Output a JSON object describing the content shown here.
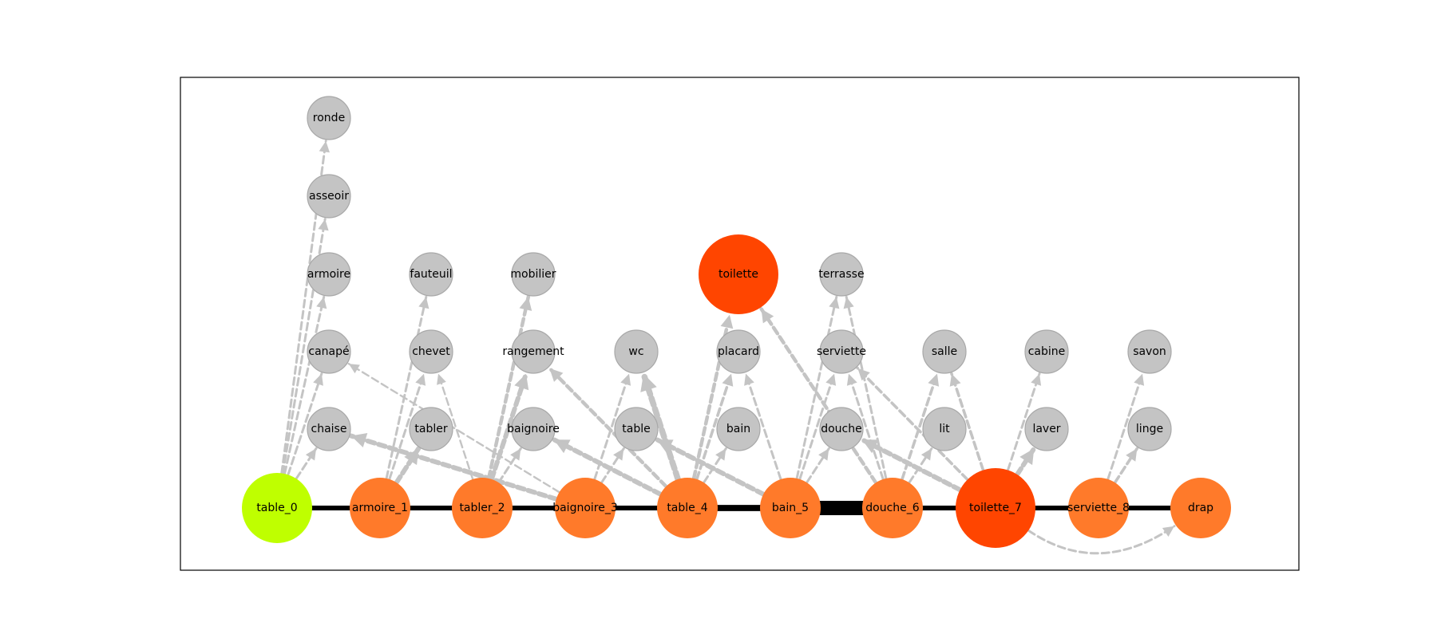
{
  "colors": {
    "start": "#bfff00",
    "chain": "#ff7a2a",
    "hub": "#ff4500",
    "assoc": "#c4c4c4",
    "assoc_stroke": "#a8a8a8",
    "edge": "#000000",
    "assoc_edge": "#c4c4c4"
  },
  "nodes": [
    {
      "id": "table_0",
      "label": "table_0",
      "kind": "start"
    },
    {
      "id": "armoire_1",
      "label": "armoire_1",
      "kind": "chain"
    },
    {
      "id": "tabler_2",
      "label": "tabler_2",
      "kind": "chain"
    },
    {
      "id": "baignoire_3",
      "label": "baignoire_3",
      "kind": "chain"
    },
    {
      "id": "table_4",
      "label": "table_4",
      "kind": "chain"
    },
    {
      "id": "bain_5",
      "label": "bain_5",
      "kind": "chain"
    },
    {
      "id": "douche_6",
      "label": "douche_6",
      "kind": "chain"
    },
    {
      "id": "toilette_7",
      "label": "toilette_7",
      "kind": "hub"
    },
    {
      "id": "serviette_8",
      "label": "serviette_8",
      "kind": "chain"
    },
    {
      "id": "drap",
      "label": "drap",
      "kind": "chain"
    },
    {
      "id": "toilette",
      "label": "toilette",
      "kind": "hub"
    },
    {
      "id": "chaise",
      "label": "chaise",
      "kind": "assoc"
    },
    {
      "id": "canape",
      "label": "canapé",
      "kind": "assoc"
    },
    {
      "id": "armoire",
      "label": "armoire",
      "kind": "assoc"
    },
    {
      "id": "asseoir",
      "label": "asseoir",
      "kind": "assoc"
    },
    {
      "id": "ronde",
      "label": "ronde",
      "kind": "assoc"
    },
    {
      "id": "tabler",
      "label": "tabler",
      "kind": "assoc"
    },
    {
      "id": "chevet",
      "label": "chevet",
      "kind": "assoc"
    },
    {
      "id": "fauteuil",
      "label": "fauteuil",
      "kind": "assoc"
    },
    {
      "id": "baignoire",
      "label": "baignoire",
      "kind": "assoc"
    },
    {
      "id": "rangement",
      "label": "rangement",
      "kind": "assoc"
    },
    {
      "id": "mobilier",
      "label": "mobilier",
      "kind": "assoc"
    },
    {
      "id": "table",
      "label": "table",
      "kind": "assoc"
    },
    {
      "id": "wc",
      "label": "wc",
      "kind": "assoc"
    },
    {
      "id": "bain",
      "label": "bain",
      "kind": "assoc"
    },
    {
      "id": "placard",
      "label": "placard",
      "kind": "assoc"
    },
    {
      "id": "douche",
      "label": "douche",
      "kind": "assoc"
    },
    {
      "id": "serviette",
      "label": "serviette",
      "kind": "assoc"
    },
    {
      "id": "terrasse",
      "label": "terrasse",
      "kind": "assoc"
    },
    {
      "id": "lit",
      "label": "lit",
      "kind": "assoc"
    },
    {
      "id": "salle",
      "label": "salle",
      "kind": "assoc"
    },
    {
      "id": "laver",
      "label": "laver",
      "kind": "assoc"
    },
    {
      "id": "cabine",
      "label": "cabine",
      "kind": "assoc"
    },
    {
      "id": "linge",
      "label": "linge",
      "kind": "assoc"
    },
    {
      "id": "savon",
      "label": "savon",
      "kind": "assoc"
    }
  ],
  "chain_edges": [
    {
      "from": "table_0",
      "to": "armoire_1",
      "weight": 1
    },
    {
      "from": "armoire_1",
      "to": "tabler_2",
      "weight": 1
    },
    {
      "from": "tabler_2",
      "to": "baignoire_3",
      "weight": 1
    },
    {
      "from": "baignoire_3",
      "to": "table_4",
      "weight": 1
    },
    {
      "from": "table_4",
      "to": "bain_5",
      "weight": 1.3
    },
    {
      "from": "bain_5",
      "to": "douche_6",
      "weight": 3
    },
    {
      "from": "douche_6",
      "to": "toilette_7",
      "weight": 1
    },
    {
      "from": "toilette_7",
      "to": "serviette_8",
      "weight": 1
    },
    {
      "from": "serviette_8",
      "to": "drap",
      "weight": 1
    }
  ],
  "assoc_edges": [
    {
      "from": "table_0",
      "to": "chaise",
      "weight": 1
    },
    {
      "from": "table_0",
      "to": "canape",
      "weight": 1
    },
    {
      "from": "table_0",
      "to": "armoire",
      "weight": 1
    },
    {
      "from": "table_0",
      "to": "asseoir",
      "weight": 1
    },
    {
      "from": "table_0",
      "to": "ronde",
      "weight": 1
    },
    {
      "from": "armoire_1",
      "to": "tabler",
      "weight": 2
    },
    {
      "from": "armoire_1",
      "to": "chevet",
      "weight": 1
    },
    {
      "from": "armoire_1",
      "to": "fauteuil",
      "weight": 1
    },
    {
      "from": "tabler_2",
      "to": "baignoire",
      "weight": 1
    },
    {
      "from": "tabler_2",
      "to": "rangement",
      "weight": 2
    },
    {
      "from": "tabler_2",
      "to": "mobilier",
      "weight": 1.5
    },
    {
      "from": "tabler_2",
      "to": "chevet",
      "weight": 0.8
    },
    {
      "from": "baignoire_3",
      "to": "chaise",
      "weight": 2
    },
    {
      "from": "baignoire_3",
      "to": "canape",
      "weight": 0.8
    },
    {
      "from": "baignoire_3",
      "to": "table",
      "weight": 1
    },
    {
      "from": "baignoire_3",
      "to": "wc",
      "weight": 1
    },
    {
      "from": "table_4",
      "to": "baignoire",
      "weight": 2
    },
    {
      "from": "table_4",
      "to": "rangement",
      "weight": 1.5
    },
    {
      "from": "table_4",
      "to": "wc",
      "weight": 2.5
    },
    {
      "from": "table_4",
      "to": "bain",
      "weight": 1
    },
    {
      "from": "table_4",
      "to": "placard",
      "weight": 1.2
    },
    {
      "from": "table_4",
      "to": "toilette",
      "weight": 1.5
    },
    {
      "from": "bain_5",
      "to": "table",
      "weight": 2
    },
    {
      "from": "bain_5",
      "to": "placard",
      "weight": 1
    },
    {
      "from": "bain_5",
      "to": "douche",
      "weight": 1
    },
    {
      "from": "bain_5",
      "to": "serviette",
      "weight": 1
    },
    {
      "from": "bain_5",
      "to": "terrasse",
      "weight": 1
    },
    {
      "from": "douche_6",
      "to": "serviette",
      "weight": 1
    },
    {
      "from": "douche_6",
      "to": "terrasse",
      "weight": 1
    },
    {
      "from": "douche_6",
      "to": "lit",
      "weight": 1
    },
    {
      "from": "douche_6",
      "to": "salle",
      "weight": 1.2
    },
    {
      "from": "douche_6",
      "to": "toilette",
      "weight": 1.5
    },
    {
      "from": "toilette_7",
      "to": "douche",
      "weight": 2
    },
    {
      "from": "toilette_7",
      "to": "serviette",
      "weight": 1.2
    },
    {
      "from": "toilette_7",
      "to": "salle",
      "weight": 1.2
    },
    {
      "from": "toilette_7",
      "to": "laver",
      "weight": 2
    },
    {
      "from": "toilette_7",
      "to": "cabine",
      "weight": 1
    },
    {
      "from": "toilette_7",
      "to": "drap",
      "weight": 1
    },
    {
      "from": "serviette_8",
      "to": "linge",
      "weight": 1.2
    },
    {
      "from": "serviette_8",
      "to": "savon",
      "weight": 1
    }
  ]
}
